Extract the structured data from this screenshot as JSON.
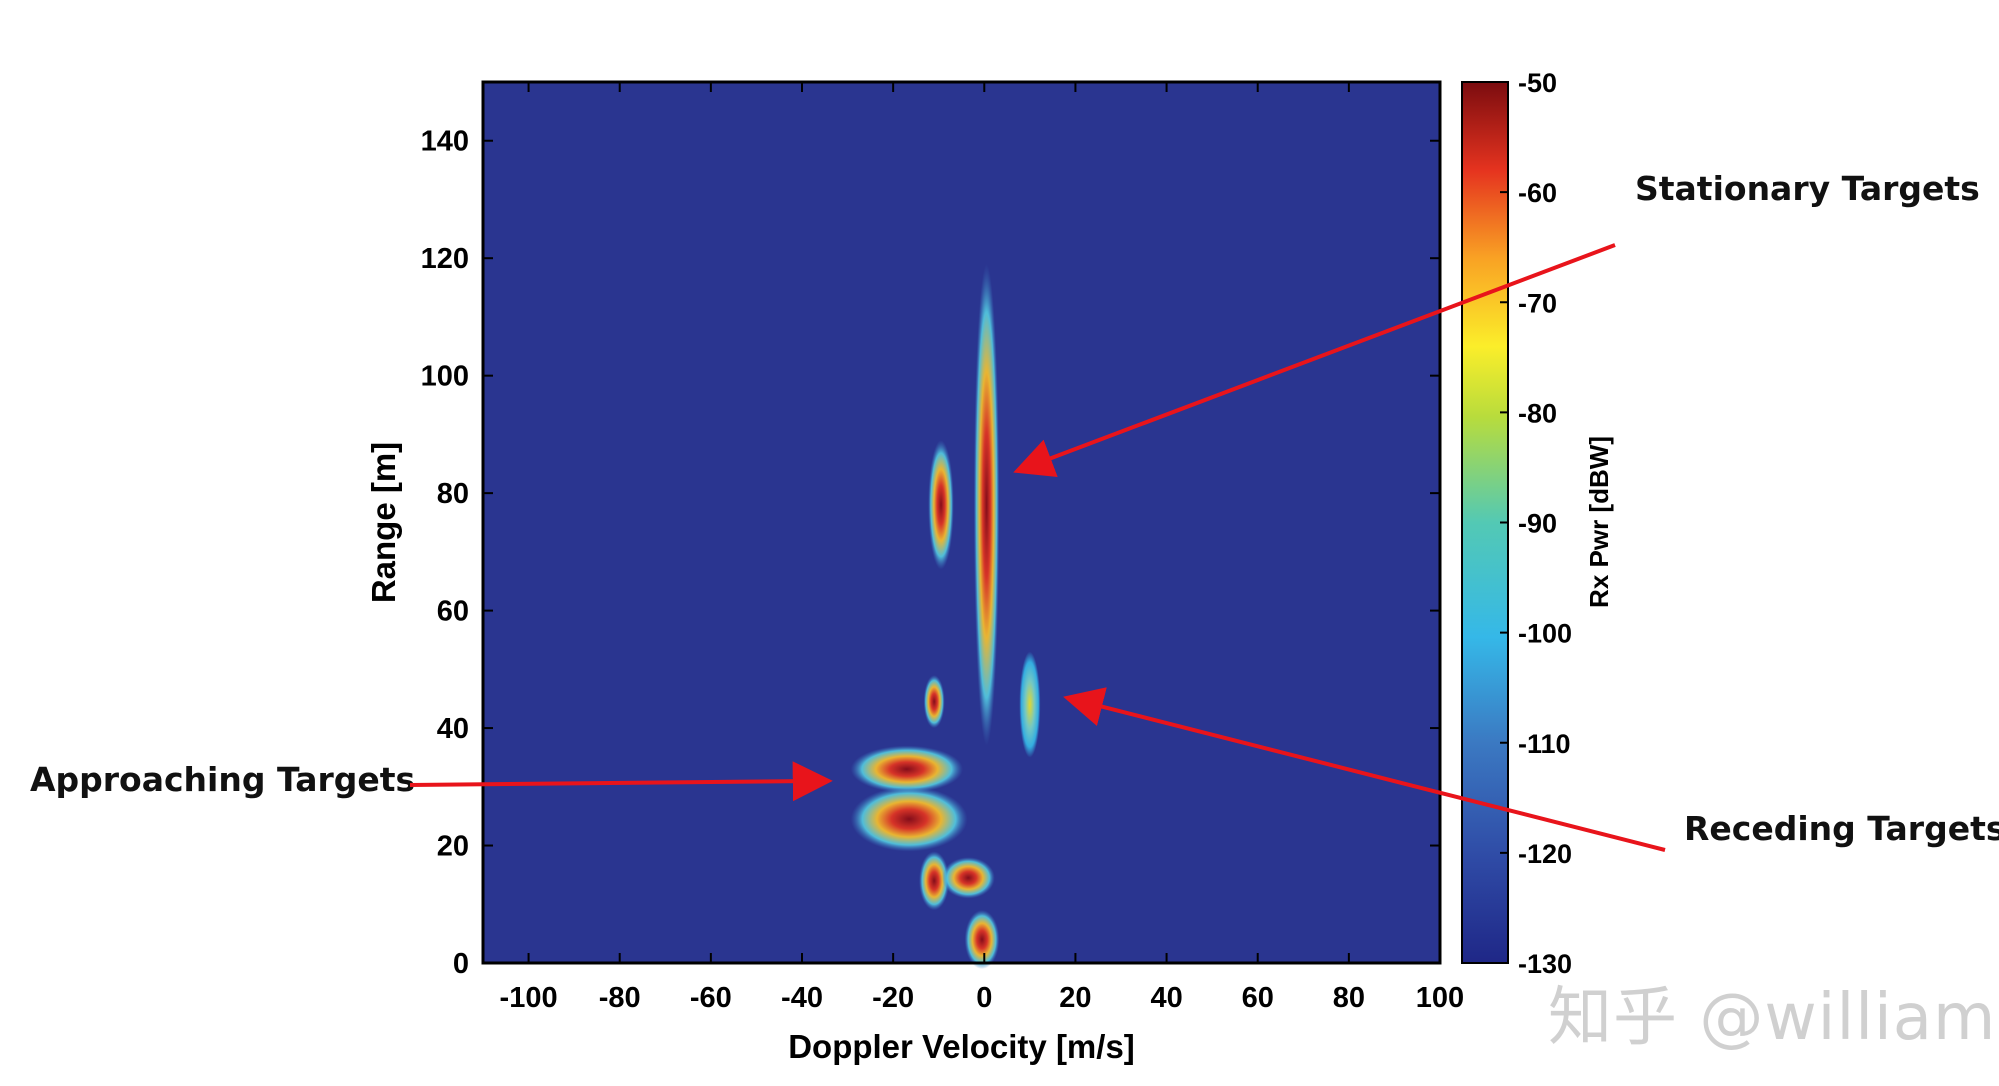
{
  "chart_data": {
    "type": "heatmap",
    "title": "",
    "xlabel": "Doppler Velocity [m/s]",
    "ylabel": "Range [m]",
    "xlim": [
      -110,
      100
    ],
    "ylim": [
      0,
      150
    ],
    "xticks": [
      -100,
      -80,
      -60,
      -40,
      -20,
      0,
      20,
      40,
      60,
      80,
      100
    ],
    "yticks": [
      0,
      20,
      40,
      60,
      80,
      100,
      120,
      140
    ],
    "background_value_dBW": -130,
    "colorbar": {
      "label": "Rx Pwr [dBW]",
      "range": [
        -130,
        -50
      ],
      "ticks": [
        -50,
        -60,
        -70,
        -80,
        -90,
        -100,
        -110,
        -120,
        -130
      ],
      "colormap": "jet"
    },
    "clusters": [
      {
        "velocity": [
          -28,
          -6
        ],
        "range": [
          30,
          36
        ],
        "peak_dBW": -55
      },
      {
        "velocity": [
          -28,
          -5
        ],
        "range": [
          20,
          29
        ],
        "peak_dBW": -55
      },
      {
        "velocity": [
          -13,
          -9
        ],
        "range": [
          10,
          18
        ],
        "peak_dBW": -50
      },
      {
        "velocity": [
          -8,
          1
        ],
        "range": [
          12,
          17
        ],
        "peak_dBW": -60
      },
      {
        "velocity": [
          -12,
          -10
        ],
        "range": [
          41,
          48
        ],
        "peak_dBW": -55
      },
      {
        "velocity": [
          -3,
          2
        ],
        "range": [
          0,
          8
        ],
        "peak_dBW": -62
      },
      {
        "velocity": [
          -11,
          -8
        ],
        "range": [
          68,
          88
        ],
        "peak_dBW": -65
      },
      {
        "velocity": [
          -1,
          2
        ],
        "range": [
          38,
          118
        ],
        "peak_dBW": -60
      },
      {
        "velocity": [
          9,
          11
        ],
        "range": [
          36,
          52
        ],
        "peak_dBW": -85
      }
    ],
    "annotations": [
      {
        "text": "Stationary Targets",
        "points_to": [
          8,
          84
        ]
      },
      {
        "text": "Approaching Targets",
        "points_to": [
          -35,
          31
        ]
      },
      {
        "text": "Receding Targets",
        "points_to": [
          19,
          45
        ]
      }
    ],
    "grid": false,
    "legend": "colorbar-right"
  },
  "watermark": "知乎 @william",
  "colors": {
    "background_field": "#2a3590",
    "arrow": "#e8141b",
    "axis": "#000000"
  }
}
